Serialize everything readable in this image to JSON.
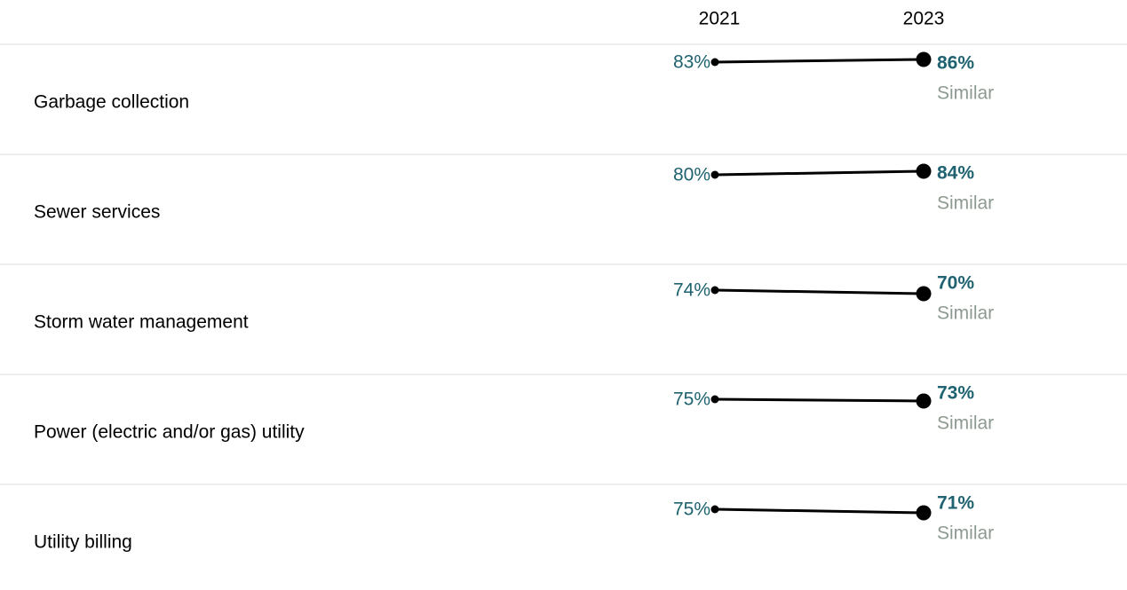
{
  "chart_data": {
    "type": "slope",
    "categories": [
      "Garbage collection",
      "Sewer services",
      "Storm water management",
      "Power (electric and/or gas) utility",
      "Utility billing"
    ],
    "series": [
      {
        "name": "2021",
        "color": "#1f6270",
        "values": [
          83,
          80,
          74,
          75,
          75
        ],
        "value_labels": [
          "83%",
          "80%",
          "74%",
          "75%",
          "75%"
        ]
      },
      {
        "name": "2023",
        "color": "#1f6270",
        "values": [
          86,
          84,
          70,
          73,
          71
        ],
        "value_labels": [
          "86%",
          "84%",
          "70%",
          "73%",
          "71%"
        ]
      }
    ],
    "line_color": "#000000",
    "comparisons": [
      "Similar",
      "Similar",
      "Similar",
      "Similar",
      "Similar"
    ]
  }
}
